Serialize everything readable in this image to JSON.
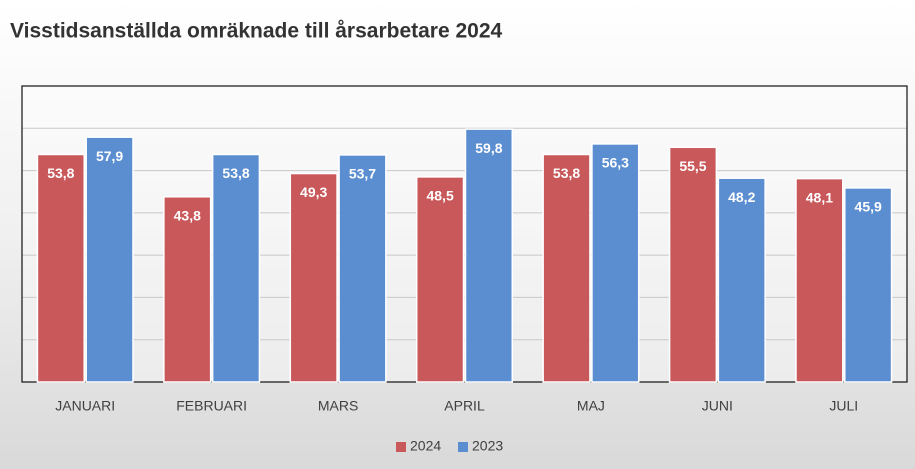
{
  "chart_data": {
    "type": "bar",
    "title": "Visstidsanställda omräknade till årsarbetare 2024",
    "categories": [
      "JANUARI",
      "FEBRUARI",
      "MARS",
      "APRIL",
      "MAJ",
      "JUNI",
      "JULI"
    ],
    "series": [
      {
        "name": "2024",
        "color": "#c9585a",
        "values": [
          53.8,
          43.8,
          49.3,
          48.5,
          53.8,
          55.5,
          48.1
        ],
        "value_labels": [
          "53,8",
          "43,8",
          "49,3",
          "48,5",
          "53,8",
          "55,5",
          "48,1"
        ]
      },
      {
        "name": "2023",
        "color": "#5b8ed0",
        "values": [
          57.9,
          53.8,
          53.7,
          59.8,
          56.3,
          48.2,
          45.9
        ],
        "value_labels": [
          "57,9",
          "53,8",
          "53,7",
          "59,8",
          "56,3",
          "48,2",
          "45,9"
        ]
      }
    ],
    "ylim": [
      0,
      70
    ],
    "yticks": [
      0,
      10,
      20,
      30,
      40,
      50,
      60,
      70
    ],
    "grid": true,
    "legend": "bottom"
  }
}
